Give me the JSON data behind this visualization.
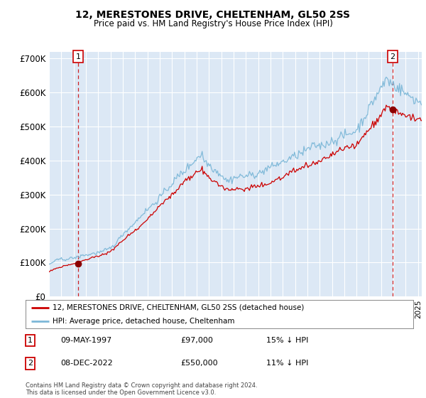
{
  "title": "12, MERESTONES DRIVE, CHELTENHAM, GL50 2SS",
  "subtitle": "Price paid vs. HM Land Registry's House Price Index (HPI)",
  "xlim": [
    1995.0,
    2025.3
  ],
  "ylim": [
    0,
    720000
  ],
  "yticks": [
    0,
    100000,
    200000,
    300000,
    400000,
    500000,
    600000,
    700000
  ],
  "ytick_labels": [
    "£0",
    "£100K",
    "£200K",
    "£300K",
    "£400K",
    "£500K",
    "£600K",
    "£700K"
  ],
  "sale1_date": 1997.36,
  "sale1_price": 97000,
  "sale1_label": "1",
  "sale1_text": "09-MAY-1997",
  "sale1_amount": "£97,000",
  "sale1_hpi": "15% ↓ HPI",
  "sale2_date": 2022.93,
  "sale2_price": 550000,
  "sale2_label": "2",
  "sale2_text": "08-DEC-2022",
  "sale2_amount": "£550,000",
  "sale2_hpi": "11% ↓ HPI",
  "legend_line1": "12, MERESTONES DRIVE, CHELTENHAM, GL50 2SS (detached house)",
  "legend_line2": "HPI: Average price, detached house, Cheltenham",
  "footer": "Contains HM Land Registry data © Crown copyright and database right 2024.\nThis data is licensed under the Open Government Licence v3.0.",
  "hpi_color": "#7db8d8",
  "sale_color": "#cc0000",
  "bg_color": "#ffffff",
  "plot_bg": "#dce8f5"
}
